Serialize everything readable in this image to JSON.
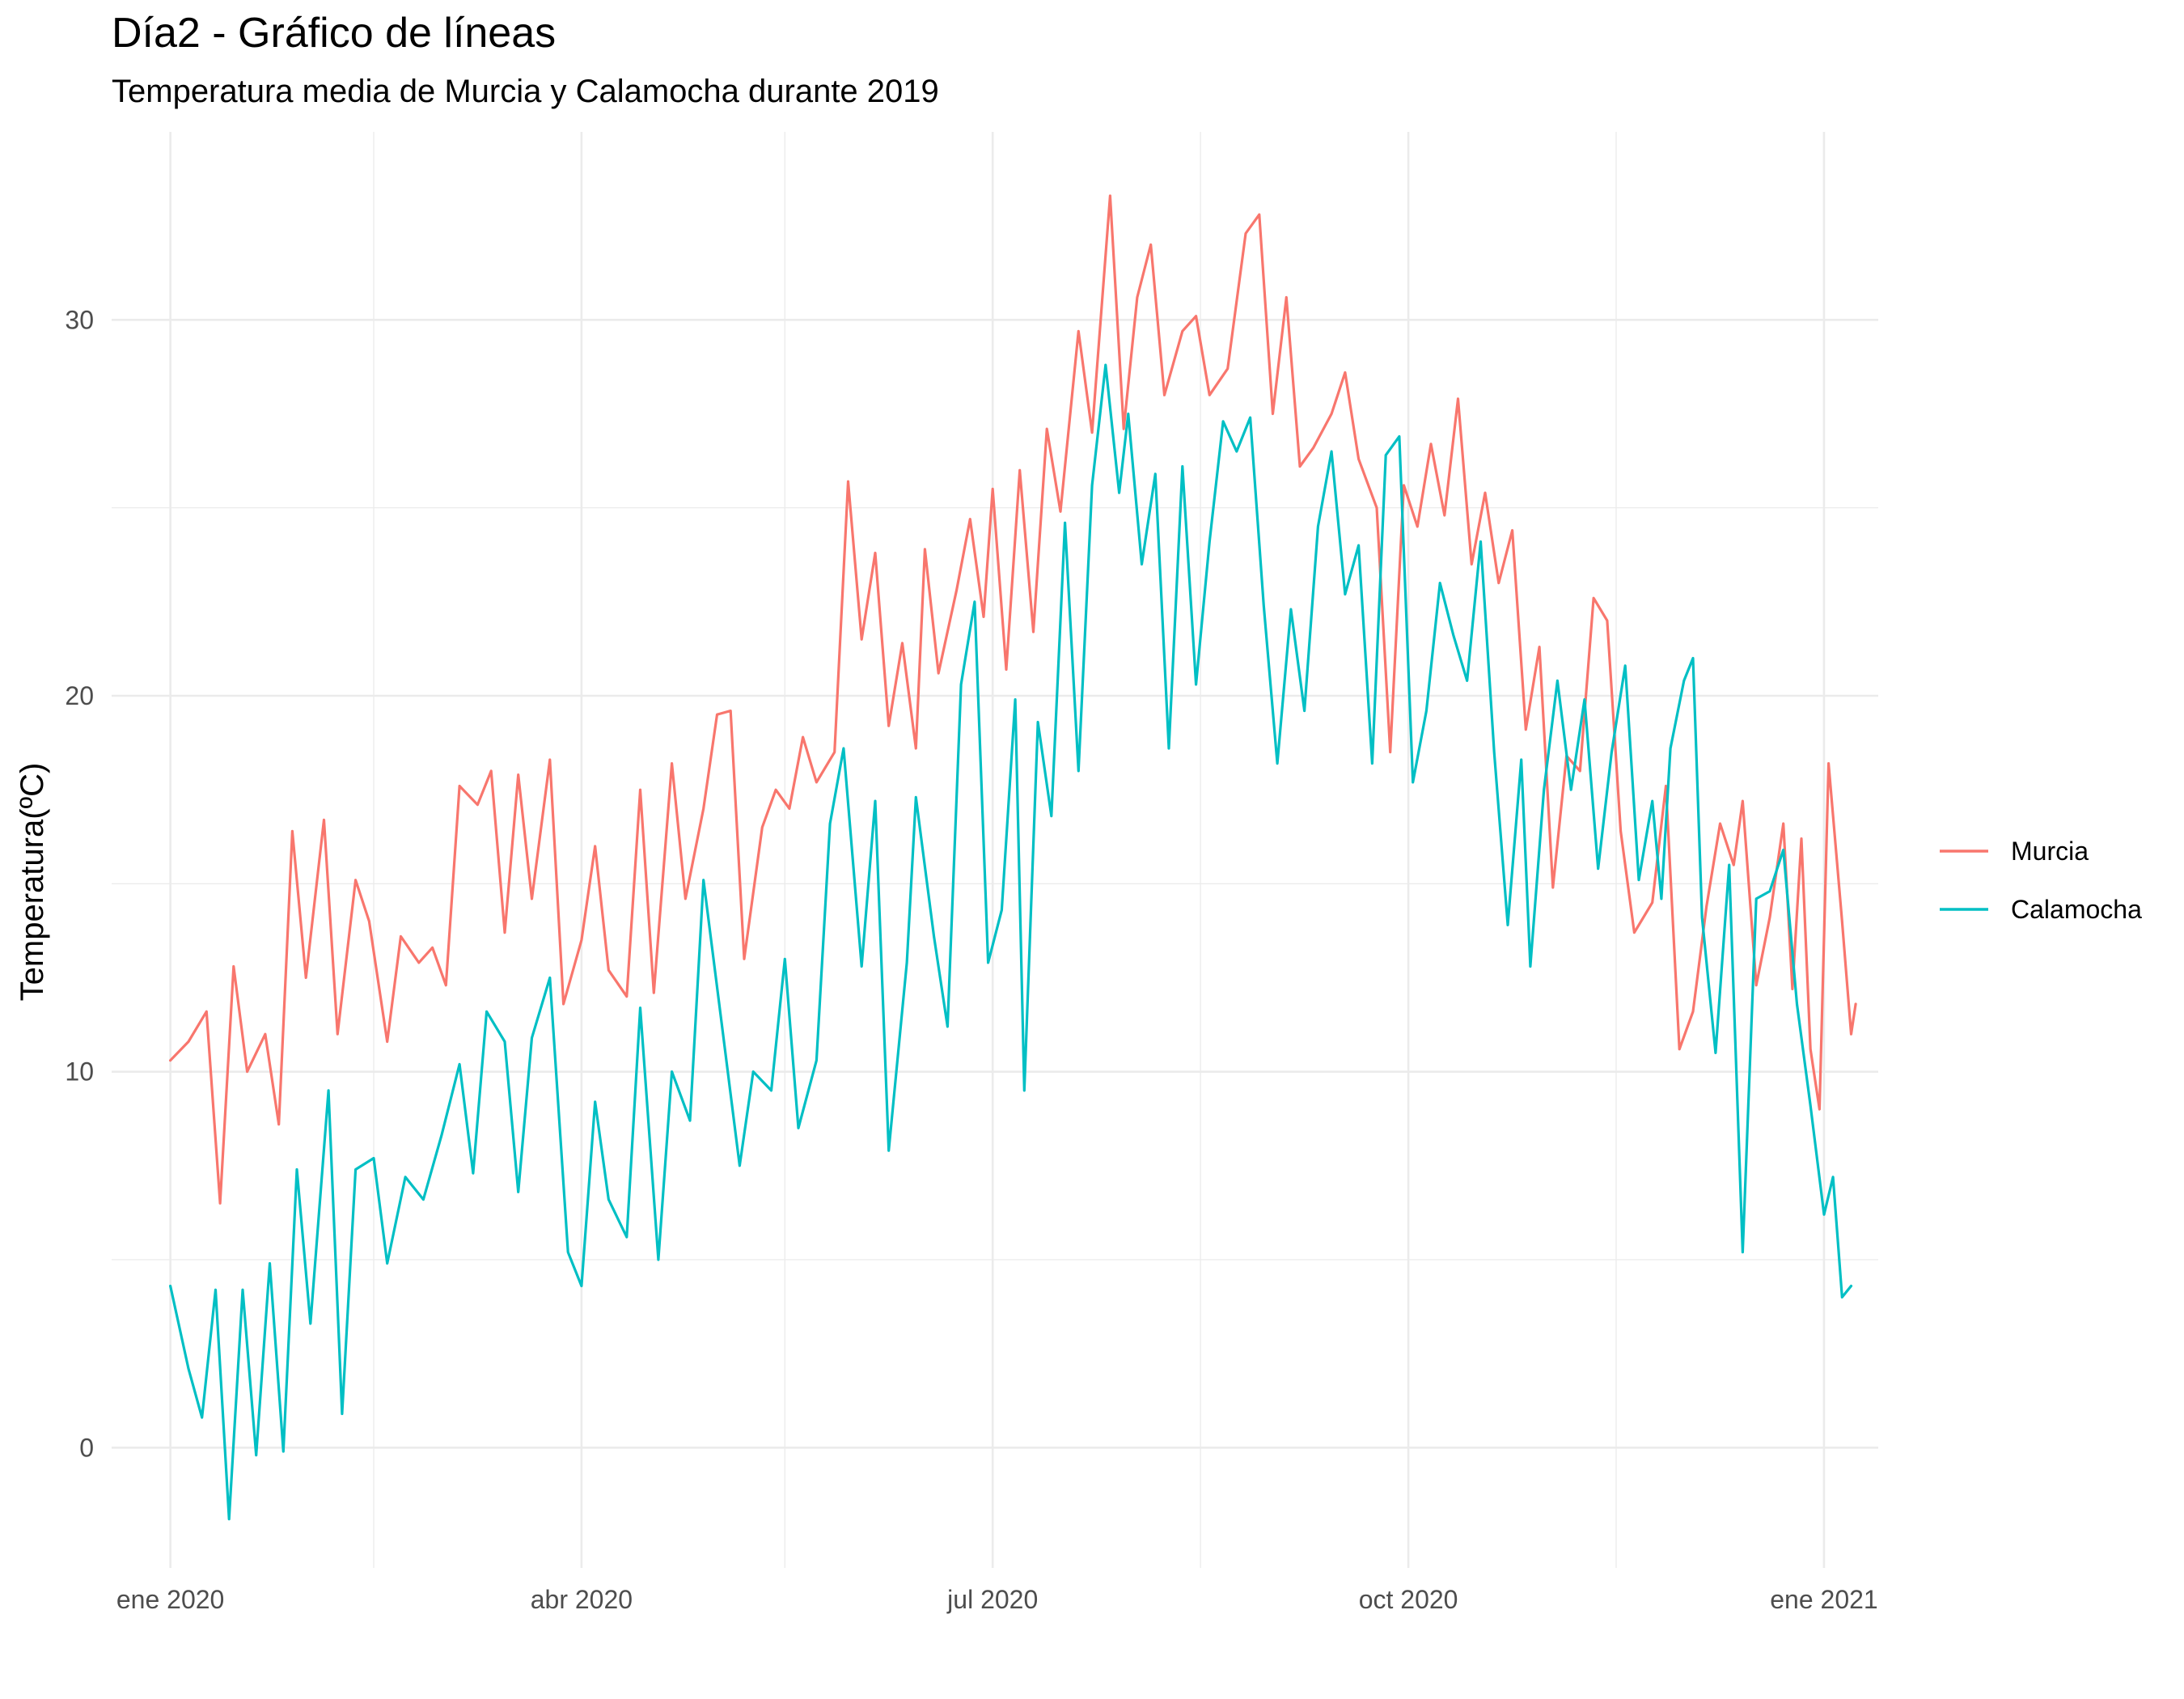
{
  "chart_data": {
    "type": "line",
    "title": "Día2 - Gráfico de líneas",
    "subtitle": "Temperatura media de Murcia y Calamocha durante 2019",
    "xlabel": "",
    "ylabel": "Temperatura(ºC)",
    "x_start": "2020-01-01",
    "x_end": "2020-12-31",
    "x_ticks": [
      {
        "date": "2020-01-01",
        "label": "ene 2020"
      },
      {
        "date": "2020-04-01",
        "label": "abr 2020"
      },
      {
        "date": "2020-07-01",
        "label": "jul 2020"
      },
      {
        "date": "2020-10-01",
        "label": "oct 2020"
      },
      {
        "date": "2021-01-01",
        "label": "ene 2021"
      }
    ],
    "x_minor_ticks": [
      "2020-02-15",
      "2020-05-16",
      "2020-08-16",
      "2020-11-16"
    ],
    "xlim": [
      "2019-12-19",
      "2021-01-13"
    ],
    "ylim": [
      -3.2,
      35.0
    ],
    "y_ticks": [
      0,
      10,
      20,
      30
    ],
    "y_minor_ticks": [
      5,
      15,
      25
    ],
    "grid": true,
    "legend_position": "right",
    "series": [
      {
        "name": "Murcia",
        "color": "#F8766D",
        "points": [
          [
            "2020-01-01",
            10.3
          ],
          [
            "2020-01-05",
            10.8
          ],
          [
            "2020-01-09",
            11.6
          ],
          [
            "2020-01-12",
            6.5
          ],
          [
            "2020-01-15",
            12.8
          ],
          [
            "2020-01-18",
            10.0
          ],
          [
            "2020-01-22",
            11.0
          ],
          [
            "2020-01-25",
            8.6
          ],
          [
            "2020-01-28",
            16.4
          ],
          [
            "2020-01-31",
            12.5
          ],
          [
            "2020-02-04",
            16.7
          ],
          [
            "2020-02-07",
            11.0
          ],
          [
            "2020-02-11",
            15.1
          ],
          [
            "2020-02-14",
            14.0
          ],
          [
            "2020-02-18",
            10.8
          ],
          [
            "2020-02-21",
            13.6
          ],
          [
            "2020-02-25",
            12.9
          ],
          [
            "2020-02-28",
            13.3
          ],
          [
            "2020-03-02",
            12.3
          ],
          [
            "2020-03-05",
            17.6
          ],
          [
            "2020-03-09",
            17.1
          ],
          [
            "2020-03-12",
            18.0
          ],
          [
            "2020-03-15",
            13.7
          ],
          [
            "2020-03-18",
            17.9
          ],
          [
            "2020-03-21",
            14.6
          ],
          [
            "2020-03-25",
            18.3
          ],
          [
            "2020-03-28",
            11.8
          ],
          [
            "2020-04-01",
            13.5
          ],
          [
            "2020-04-04",
            16.0
          ],
          [
            "2020-04-07",
            12.7
          ],
          [
            "2020-04-11",
            12.0
          ],
          [
            "2020-04-14",
            17.5
          ],
          [
            "2020-04-17",
            12.1
          ],
          [
            "2020-04-21",
            18.2
          ],
          [
            "2020-04-24",
            14.6
          ],
          [
            "2020-04-28",
            17.0
          ],
          [
            "2020-05-01",
            19.5
          ],
          [
            "2020-05-04",
            19.6
          ],
          [
            "2020-05-07",
            13.0
          ],
          [
            "2020-05-11",
            16.5
          ],
          [
            "2020-05-14",
            17.5
          ],
          [
            "2020-05-17",
            17.0
          ],
          [
            "2020-05-20",
            18.9
          ],
          [
            "2020-05-23",
            17.7
          ],
          [
            "2020-05-27",
            18.5
          ],
          [
            "2020-05-30",
            25.7
          ],
          [
            "2020-06-02",
            21.5
          ],
          [
            "2020-06-05",
            23.8
          ],
          [
            "2020-06-08",
            19.2
          ],
          [
            "2020-06-11",
            21.4
          ],
          [
            "2020-06-14",
            18.6
          ],
          [
            "2020-06-16",
            23.9
          ],
          [
            "2020-06-19",
            20.6
          ],
          [
            "2020-06-23",
            22.8
          ],
          [
            "2020-06-26",
            24.7
          ],
          [
            "2020-06-29",
            22.1
          ],
          [
            "2020-07-01",
            25.5
          ],
          [
            "2020-07-04",
            20.7
          ],
          [
            "2020-07-07",
            26.0
          ],
          [
            "2020-07-10",
            21.7
          ],
          [
            "2020-07-13",
            27.1
          ],
          [
            "2020-07-16",
            24.9
          ],
          [
            "2020-07-20",
            29.7
          ],
          [
            "2020-07-23",
            27.0
          ],
          [
            "2020-07-27",
            33.3
          ],
          [
            "2020-07-30",
            27.1
          ],
          [
            "2020-08-02",
            30.6
          ],
          [
            "2020-08-05",
            32.0
          ],
          [
            "2020-08-08",
            28.0
          ],
          [
            "2020-08-12",
            29.7
          ],
          [
            "2020-08-15",
            30.1
          ],
          [
            "2020-08-18",
            28.0
          ],
          [
            "2020-08-22",
            28.7
          ],
          [
            "2020-08-26",
            32.3
          ],
          [
            "2020-08-29",
            32.8
          ],
          [
            "2020-09-01",
            27.5
          ],
          [
            "2020-09-04",
            30.6
          ],
          [
            "2020-09-07",
            26.1
          ],
          [
            "2020-09-10",
            26.6
          ],
          [
            "2020-09-14",
            27.5
          ],
          [
            "2020-09-17",
            28.6
          ],
          [
            "2020-09-20",
            26.3
          ],
          [
            "2020-09-24",
            25.0
          ],
          [
            "2020-09-27",
            18.5
          ],
          [
            "2020-09-30",
            25.6
          ],
          [
            "2020-10-03",
            24.5
          ],
          [
            "2020-10-06",
            26.7
          ],
          [
            "2020-10-09",
            24.8
          ],
          [
            "2020-10-12",
            27.9
          ],
          [
            "2020-10-15",
            23.5
          ],
          [
            "2020-10-18",
            25.4
          ],
          [
            "2020-10-21",
            23.0
          ],
          [
            "2020-10-24",
            24.4
          ],
          [
            "2020-10-27",
            19.1
          ],
          [
            "2020-10-30",
            21.3
          ],
          [
            "2020-11-02",
            14.9
          ],
          [
            "2020-11-05",
            18.4
          ],
          [
            "2020-11-08",
            18.0
          ],
          [
            "2020-11-11",
            22.6
          ],
          [
            "2020-11-14",
            22.0
          ],
          [
            "2020-11-17",
            16.4
          ],
          [
            "2020-11-20",
            13.7
          ],
          [
            "2020-11-24",
            14.5
          ],
          [
            "2020-11-27",
            17.6
          ],
          [
            "2020-11-30",
            10.6
          ],
          [
            "2020-12-03",
            11.6
          ],
          [
            "2020-12-06",
            14.4
          ],
          [
            "2020-12-09",
            16.6
          ],
          [
            "2020-12-12",
            15.5
          ],
          [
            "2020-12-14",
            17.2
          ],
          [
            "2020-12-17",
            12.3
          ],
          [
            "2020-12-20",
            14.1
          ],
          [
            "2020-12-23",
            16.6
          ],
          [
            "2020-12-25",
            12.2
          ],
          [
            "2020-12-27",
            16.2
          ],
          [
            "2020-12-29",
            10.6
          ],
          [
            "2020-12-31",
            9.0
          ],
          [
            "2021-01-02",
            18.2
          ],
          [
            "2021-01-05",
            14.0
          ],
          [
            "2021-01-07",
            11.0
          ],
          [
            "2021-01-08",
            11.8
          ]
        ]
      },
      {
        "name": "Calamocha",
        "color": "#00BFC4",
        "points": [
          [
            "2020-01-01",
            4.3
          ],
          [
            "2020-01-05",
            2.1
          ],
          [
            "2020-01-08",
            0.8
          ],
          [
            "2020-01-11",
            4.2
          ],
          [
            "2020-01-14",
            -1.9
          ],
          [
            "2020-01-17",
            4.2
          ],
          [
            "2020-01-20",
            -0.2
          ],
          [
            "2020-01-23",
            4.9
          ],
          [
            "2020-01-26",
            -0.1
          ],
          [
            "2020-01-29",
            7.4
          ],
          [
            "2020-02-01",
            3.3
          ],
          [
            "2020-02-05",
            9.5
          ],
          [
            "2020-02-08",
            0.9
          ],
          [
            "2020-02-11",
            7.4
          ],
          [
            "2020-02-15",
            7.7
          ],
          [
            "2020-02-18",
            4.9
          ],
          [
            "2020-02-22",
            7.2
          ],
          [
            "2020-02-26",
            6.6
          ],
          [
            "2020-03-01",
            8.3
          ],
          [
            "2020-03-05",
            10.2
          ],
          [
            "2020-03-08",
            7.3
          ],
          [
            "2020-03-11",
            11.6
          ],
          [
            "2020-03-15",
            10.8
          ],
          [
            "2020-03-18",
            6.8
          ],
          [
            "2020-03-21",
            10.9
          ],
          [
            "2020-03-25",
            12.5
          ],
          [
            "2020-03-29",
            5.2
          ],
          [
            "2020-04-01",
            4.3
          ],
          [
            "2020-04-04",
            9.2
          ],
          [
            "2020-04-07",
            6.6
          ],
          [
            "2020-04-11",
            5.6
          ],
          [
            "2020-04-14",
            11.7
          ],
          [
            "2020-04-18",
            5.0
          ],
          [
            "2020-04-21",
            10.0
          ],
          [
            "2020-04-25",
            8.7
          ],
          [
            "2020-04-28",
            15.1
          ],
          [
            "2020-05-02",
            11.3
          ],
          [
            "2020-05-06",
            7.5
          ],
          [
            "2020-05-09",
            10.0
          ],
          [
            "2020-05-13",
            9.5
          ],
          [
            "2020-05-16",
            13.0
          ],
          [
            "2020-05-19",
            8.5
          ],
          [
            "2020-05-23",
            10.3
          ],
          [
            "2020-05-26",
            16.6
          ],
          [
            "2020-05-29",
            18.6
          ],
          [
            "2020-06-02",
            12.8
          ],
          [
            "2020-06-05",
            17.2
          ],
          [
            "2020-06-08",
            7.9
          ],
          [
            "2020-06-12",
            12.9
          ],
          [
            "2020-06-14",
            17.3
          ],
          [
            "2020-06-18",
            13.6
          ],
          [
            "2020-06-21",
            11.2
          ],
          [
            "2020-06-24",
            20.3
          ],
          [
            "2020-06-27",
            22.5
          ],
          [
            "2020-06-30",
            12.9
          ],
          [
            "2020-07-03",
            14.3
          ],
          [
            "2020-07-06",
            19.9
          ],
          [
            "2020-07-08",
            9.5
          ],
          [
            "2020-07-11",
            19.3
          ],
          [
            "2020-07-14",
            16.8
          ],
          [
            "2020-07-17",
            24.6
          ],
          [
            "2020-07-20",
            18.0
          ],
          [
            "2020-07-23",
            25.6
          ],
          [
            "2020-07-26",
            28.8
          ],
          [
            "2020-07-29",
            25.4
          ],
          [
            "2020-07-31",
            27.5
          ],
          [
            "2020-08-03",
            23.5
          ],
          [
            "2020-08-06",
            25.9
          ],
          [
            "2020-08-09",
            18.6
          ],
          [
            "2020-08-12",
            26.1
          ],
          [
            "2020-08-15",
            20.3
          ],
          [
            "2020-08-18",
            24.1
          ],
          [
            "2020-08-21",
            27.3
          ],
          [
            "2020-08-24",
            26.5
          ],
          [
            "2020-08-27",
            27.4
          ],
          [
            "2020-08-30",
            22.4
          ],
          [
            "2020-09-02",
            18.2
          ],
          [
            "2020-09-05",
            22.3
          ],
          [
            "2020-09-08",
            19.6
          ],
          [
            "2020-09-11",
            24.5
          ],
          [
            "2020-09-14",
            26.5
          ],
          [
            "2020-09-17",
            22.7
          ],
          [
            "2020-09-20",
            24.0
          ],
          [
            "2020-09-23",
            18.2
          ],
          [
            "2020-09-26",
            26.4
          ],
          [
            "2020-09-29",
            26.9
          ],
          [
            "2020-10-02",
            17.7
          ],
          [
            "2020-10-05",
            19.6
          ],
          [
            "2020-10-08",
            23.0
          ],
          [
            "2020-10-11",
            21.6
          ],
          [
            "2020-10-14",
            20.4
          ],
          [
            "2020-10-17",
            24.1
          ],
          [
            "2020-10-20",
            18.5
          ],
          [
            "2020-10-23",
            13.9
          ],
          [
            "2020-10-26",
            18.3
          ],
          [
            "2020-10-28",
            12.8
          ],
          [
            "2020-10-31",
            17.5
          ],
          [
            "2020-11-03",
            20.4
          ],
          [
            "2020-11-06",
            17.5
          ],
          [
            "2020-11-09",
            19.9
          ],
          [
            "2020-11-12",
            15.4
          ],
          [
            "2020-11-15",
            18.5
          ],
          [
            "2020-11-18",
            20.8
          ],
          [
            "2020-11-21",
            15.1
          ],
          [
            "2020-11-24",
            17.2
          ],
          [
            "2020-11-26",
            14.6
          ],
          [
            "2020-11-28",
            18.6
          ],
          [
            "2020-12-01",
            20.4
          ],
          [
            "2020-12-03",
            21.0
          ],
          [
            "2020-12-05",
            14.1
          ],
          [
            "2020-12-08",
            10.5
          ],
          [
            "2020-12-11",
            15.5
          ],
          [
            "2020-12-14",
            5.2
          ],
          [
            "2020-12-17",
            14.6
          ],
          [
            "2020-12-20",
            14.8
          ],
          [
            "2020-12-23",
            15.9
          ],
          [
            "2020-12-26",
            11.8
          ],
          [
            "2020-12-29",
            9.1
          ],
          [
            "2021-01-01",
            6.2
          ],
          [
            "2021-01-03",
            7.2
          ],
          [
            "2021-01-05",
            4.0
          ],
          [
            "2021-01-07",
            4.3
          ]
        ]
      }
    ]
  }
}
